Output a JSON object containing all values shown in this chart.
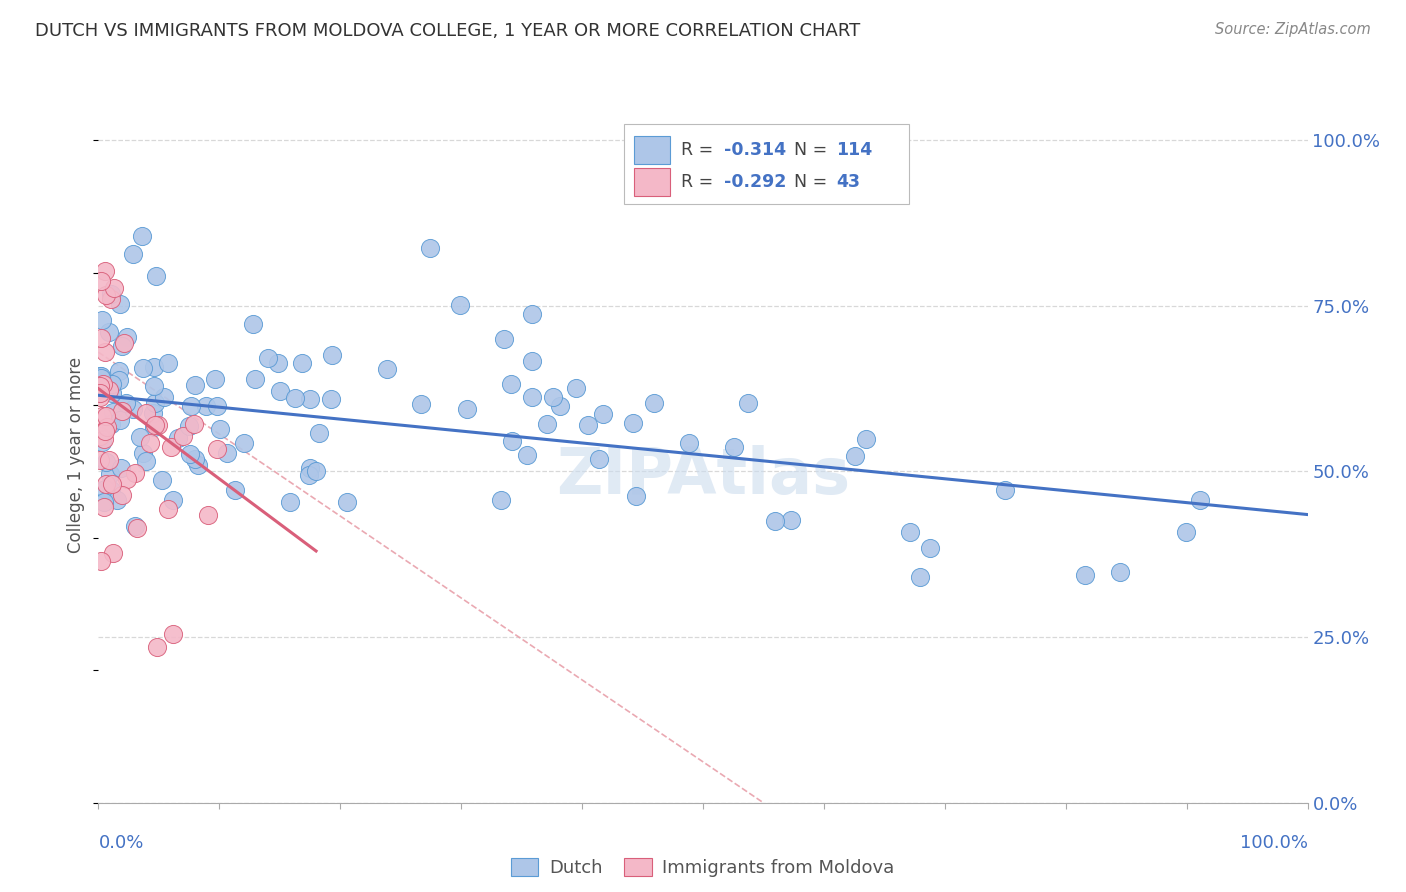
{
  "title": "DUTCH VS IMMIGRANTS FROM MOLDOVA COLLEGE, 1 YEAR OR MORE CORRELATION CHART",
  "source": "Source: ZipAtlas.com",
  "ylabel": "College, 1 year or more",
  "yticks_labels": [
    "0.0%",
    "25.0%",
    "50.0%",
    "75.0%",
    "100.0%"
  ],
  "ytick_vals": [
    0.0,
    0.25,
    0.5,
    0.75,
    1.0
  ],
  "xtick_vals": [
    0.0,
    0.1,
    0.2,
    0.3,
    0.4,
    0.5,
    0.6,
    0.7,
    0.8,
    0.9,
    1.0
  ],
  "xlim": [
    0.0,
    1.0
  ],
  "ylim": [
    0.0,
    1.05
  ],
  "dutch_line": {
    "x0": 0.0,
    "y0": 0.615,
    "x1": 1.0,
    "y1": 0.435
  },
  "moldova_line": {
    "x0": 0.0,
    "y0": 0.625,
    "x1": 0.18,
    "y1": 0.38
  },
  "ref_line": {
    "x0": 0.0,
    "y0": 0.68,
    "x1": 0.55,
    "y1": 0.0
  },
  "watermark": "ZIPAtlas",
  "dutch_line_color": "#4472c4",
  "moldova_line_color": "#d95f7a",
  "ref_line_color": "#e8a0aa",
  "scatter_dutch_color": "#aec6e8",
  "scatter_dutch_edge": "#5b9bd5",
  "scatter_moldova_color": "#f4b8c8",
  "scatter_moldova_edge": "#d95f7a",
  "bg_color": "#ffffff",
  "grid_color": "#d8d8d8",
  "title_color": "#333333",
  "axis_label_color": "#4472c4",
  "legend_R_color": "#4472c4",
  "legend_N_color": "#333333",
  "watermark_color": "#ccdcee",
  "dutch_scatter_seed": 42,
  "moldova_scatter_seed": 7,
  "bottom_legend_items": [
    "Dutch",
    "Immigrants from Moldova"
  ]
}
